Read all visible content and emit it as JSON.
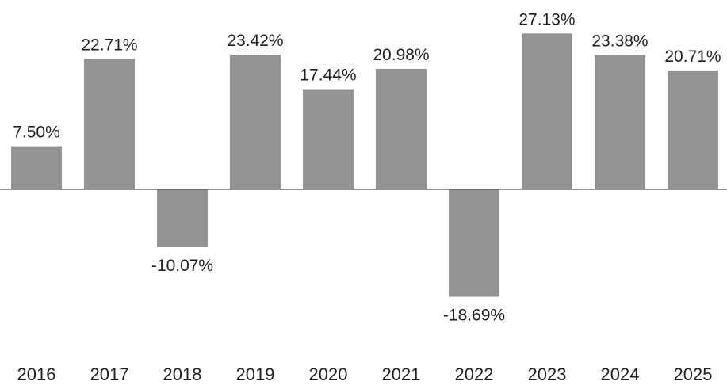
{
  "chart_data": {
    "type": "bar",
    "categories": [
      "2016",
      "2017",
      "2018",
      "2019",
      "2020",
      "2021",
      "2022",
      "2023",
      "2024",
      "2025"
    ],
    "values": [
      7.5,
      22.71,
      -10.07,
      23.42,
      17.44,
      20.98,
      -18.69,
      27.13,
      23.38,
      20.71
    ],
    "data_labels": [
      "7.50%",
      "22.71%",
      "-10.07%",
      "23.42%",
      "17.44%",
      "20.98%",
      "-18.69%",
      "27.13%",
      "23.38%",
      "20.71%"
    ],
    "title": "",
    "xlabel": "",
    "ylabel": "",
    "ylim": [
      -18.69,
      27.13
    ],
    "grid": false,
    "legend": "none",
    "bar_color": "#939393",
    "baseline_color": "#555555",
    "text_color": "#231f20"
  }
}
